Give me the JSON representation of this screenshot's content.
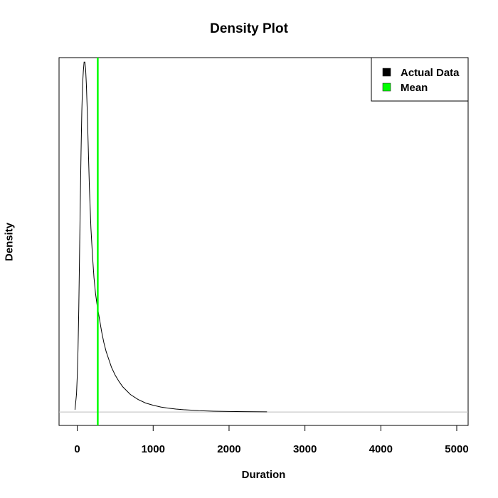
{
  "chart_data": {
    "type": "line",
    "title": "Density Plot",
    "xlabel": "Duration",
    "ylabel": "Density",
    "xlim": [
      -240,
      5150
    ],
    "ylim": [
      -3e-05,
      0.00079
    ],
    "x_ticks": [
      0,
      1000,
      2000,
      3000,
      4000,
      5000
    ],
    "x_tick_labels": [
      "0",
      "1000",
      "2000",
      "3000",
      "4000",
      "5000"
    ],
    "y_ticks_shown": false,
    "grid": false,
    "legend_position": "top-right",
    "legend": [
      {
        "label": "Actual Data",
        "color": "#000000"
      },
      {
        "label": "Mean",
        "color": "#00ff00"
      }
    ],
    "baseline": {
      "y": 0,
      "color": "#bebebe"
    },
    "mean_line": {
      "x": 270,
      "color": "#00ff00"
    },
    "series": [
      {
        "name": "Actual Data",
        "color": "#000000",
        "x": [
          -30,
          -10,
          0,
          10,
          20,
          30,
          40,
          50,
          60,
          70,
          80,
          90,
          100,
          110,
          120,
          130,
          140,
          150,
          160,
          180,
          200,
          220,
          240,
          260,
          280,
          300,
          320,
          350,
          380,
          400,
          450,
          500,
          550,
          600,
          700,
          800,
          900,
          1000,
          1100,
          1200,
          1300,
          1400,
          1500,
          1600,
          1800,
          2000,
          2200,
          2500
        ],
        "y": [
          5e-06,
          4e-05,
          8e-05,
          0.00014,
          0.00023,
          0.00035,
          0.00047,
          0.00058,
          0.00067,
          0.00073,
          0.00076,
          0.00078,
          0.00078,
          0.000765,
          0.00073,
          0.00068,
          0.00062,
          0.00056,
          0.0005,
          0.00041,
          0.00035,
          0.0003,
          0.000265,
          0.00024,
          0.00022,
          0.0002,
          0.00018,
          0.000155,
          0.000135,
          0.000125,
          0.0001,
          8.2e-05,
          6.8e-05,
          5.6e-05,
          3.9e-05,
          2.8e-05,
          2e-05,
          1.5e-05,
          1.1e-05,
          8.5e-06,
          6.5e-06,
          5e-06,
          4e-06,
          3e-06,
          1.8e-06,
          1.2e-06,
          8e-07,
          4e-07
        ]
      }
    ]
  }
}
